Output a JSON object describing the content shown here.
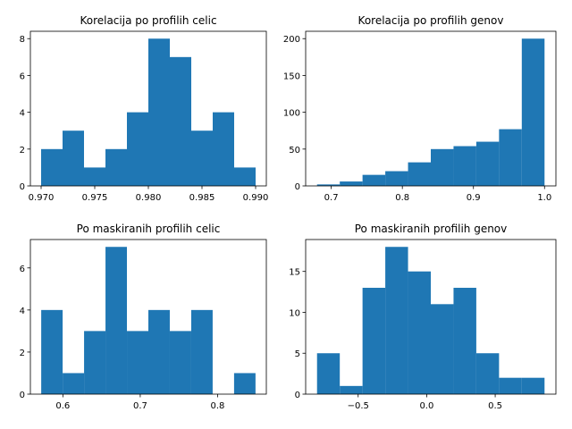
{
  "chart_data": [
    {
      "type": "histogram",
      "title": "Korelacija po profilih celic",
      "color": "#1f77b4",
      "bins": [
        0.97,
        0.972,
        0.974,
        0.976,
        0.978,
        0.98,
        0.982,
        0.984,
        0.986,
        0.988,
        0.99
      ],
      "values": [
        2,
        3,
        1,
        2,
        4,
        8,
        7,
        3,
        4,
        1
      ],
      "xlim": [
        0.969,
        0.991
      ],
      "xticks": [
        {
          "value": 0.97,
          "label": "0.970"
        },
        0.975,
        {
          "value": 0.98,
          "label": "0.980"
        },
        0.985,
        {
          "value": 0.99,
          "label": "0.990"
        }
      ],
      "ylim": [
        0,
        8.4
      ],
      "yticks": [
        0,
        2,
        4,
        6,
        8
      ]
    },
    {
      "type": "histogram",
      "title": "Korelacija po profilih genov",
      "color": "#1f77b4",
      "bins": [
        0.68,
        0.712,
        0.744,
        0.776,
        0.808,
        0.84,
        0.872,
        0.904,
        0.936,
        0.968,
        1.0
      ],
      "values": [
        2,
        6,
        15,
        20,
        32,
        50,
        54,
        60,
        77,
        200
      ],
      "xlim": [
        0.664,
        1.016
      ],
      "xticks": [
        0.7,
        0.8,
        0.9,
        {
          "value": 1.0,
          "label": "1.0"
        }
      ],
      "ylim": [
        0,
        210
      ],
      "yticks": [
        0,
        50,
        100,
        150,
        200
      ]
    },
    {
      "type": "histogram",
      "title": "Po maskiranih profilih celic",
      "color": "#1f77b4",
      "bins": [
        0.572,
        0.5997,
        0.6274,
        0.6551,
        0.6828,
        0.7105,
        0.7382,
        0.7659,
        0.7936,
        0.8213,
        0.849
      ],
      "values": [
        4,
        1,
        3,
        7,
        3,
        4,
        3,
        4,
        0,
        1
      ],
      "xlim": [
        0.558,
        0.863
      ],
      "xticks": [
        0.6,
        0.7,
        0.8
      ],
      "ylim": [
        0,
        7.35
      ],
      "yticks": [
        0,
        2,
        4,
        6
      ]
    },
    {
      "type": "histogram",
      "title": "Po maskiranih profilih genov",
      "color": "#1f77b4",
      "bins": [
        -0.8,
        -0.634,
        -0.468,
        -0.302,
        -0.136,
        0.03,
        0.196,
        0.362,
        0.528,
        0.694,
        0.86
      ],
      "values": [
        5,
        1,
        13,
        18,
        15,
        11,
        13,
        5,
        2,
        2
      ],
      "xlim": [
        -0.883,
        0.943
      ],
      "xticks": [
        {
          "value": -0.5,
          "label": "−0.5"
        },
        {
          "value": 0,
          "label": "0.0"
        },
        0.5
      ],
      "ylim": [
        0,
        18.9
      ],
      "yticks": [
        0,
        5,
        10,
        15
      ]
    }
  ]
}
